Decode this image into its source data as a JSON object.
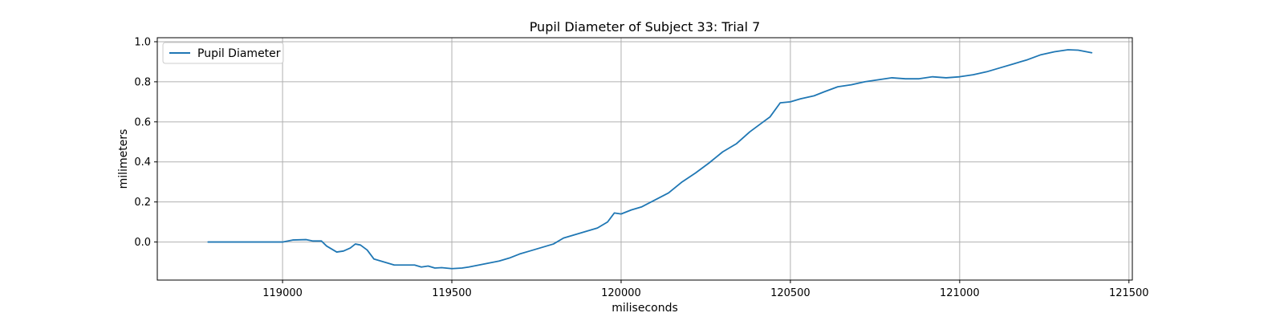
{
  "chart_data": {
    "type": "line",
    "title": "Pupil Diameter of Subject 33: Trial 7",
    "xlabel": "miliseconds",
    "ylabel": "milimeters",
    "xlim": [
      118630,
      121510
    ],
    "ylim": [
      -0.19,
      1.02
    ],
    "xticks": [
      119000,
      119500,
      120000,
      120500,
      121000,
      121500
    ],
    "yticks": [
      0.0,
      0.2,
      0.4,
      0.6,
      0.8,
      1.0
    ],
    "ytick_labels": [
      "0.0",
      "0.2",
      "0.4",
      "0.6",
      "0.8",
      "1.0"
    ],
    "grid": true,
    "legend_position": "top-left",
    "color": "#1f77b4",
    "series": [
      {
        "name": "Pupil Diameter",
        "x": [
          118780,
          118850,
          118950,
          119000,
          119030,
          119070,
          119090,
          119115,
          119130,
          119160,
          119180,
          119200,
          119215,
          119230,
          119250,
          119270,
          119300,
          119330,
          119360,
          119390,
          119410,
          119430,
          119450,
          119470,
          119500,
          119530,
          119550,
          119580,
          119610,
          119640,
          119670,
          119700,
          119730,
          119760,
          119800,
          119830,
          119860,
          119900,
          119930,
          119960,
          119980,
          120000,
          120030,
          120060,
          120100,
          120140,
          120180,
          120220,
          120260,
          120300,
          120340,
          120380,
          120420,
          120440,
          120470,
          120500,
          120530,
          120570,
          120600,
          120640,
          120680,
          120720,
          120760,
          120800,
          120840,
          120880,
          120920,
          120960,
          121000,
          121040,
          121080,
          121120,
          121160,
          121200,
          121240,
          121280,
          121320,
          121350,
          121390
        ],
        "y": [
          0.0,
          0.0,
          0.0,
          0.0,
          0.01,
          0.012,
          0.005,
          0.005,
          -0.02,
          -0.05,
          -0.045,
          -0.03,
          -0.01,
          -0.015,
          -0.04,
          -0.085,
          -0.1,
          -0.115,
          -0.115,
          -0.115,
          -0.125,
          -0.12,
          -0.13,
          -0.128,
          -0.133,
          -0.13,
          -0.125,
          -0.115,
          -0.105,
          -0.095,
          -0.08,
          -0.06,
          -0.045,
          -0.03,
          -0.01,
          0.02,
          0.035,
          0.055,
          0.07,
          0.1,
          0.145,
          0.14,
          0.16,
          0.175,
          0.21,
          0.245,
          0.3,
          0.345,
          0.395,
          0.45,
          0.49,
          0.55,
          0.6,
          0.625,
          0.695,
          0.7,
          0.715,
          0.73,
          0.75,
          0.775,
          0.785,
          0.8,
          0.81,
          0.82,
          0.815,
          0.815,
          0.825,
          0.82,
          0.825,
          0.835,
          0.85,
          0.87,
          0.89,
          0.91,
          0.935,
          0.95,
          0.96,
          0.958,
          0.945
        ]
      }
    ]
  }
}
